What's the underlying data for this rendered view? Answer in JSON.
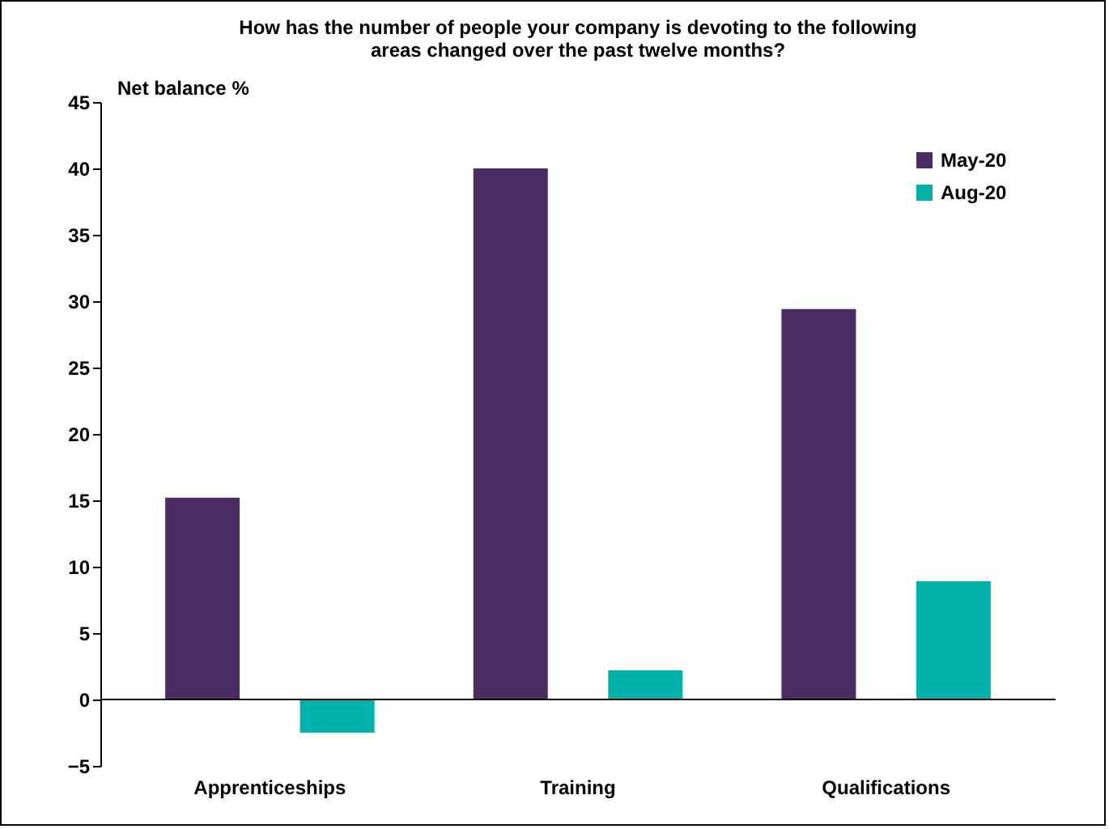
{
  "chart_data": {
    "type": "bar",
    "title": "How has the number of people your company is devoting to the following areas changed over the past twelve months?",
    "ylabel": "Net balance %",
    "categories": [
      "Apprenticeships",
      "Training",
      "Qualifications"
    ],
    "series": [
      {
        "name": "May-20",
        "color": "#4b2d63",
        "values": [
          15.2,
          40,
          29.4
        ]
      },
      {
        "name": "Aug-20",
        "color": "#00b2a9",
        "values": [
          -2.5,
          2.2,
          8.9
        ]
      }
    ],
    "ylim": [
      -5,
      45
    ],
    "yticks": [
      -5,
      0,
      5,
      10,
      15,
      20,
      25,
      30,
      35,
      40,
      45
    ],
    "ref_lines": [
      {
        "axis": "y",
        "value": 0,
        "color": "#000000"
      }
    ],
    "legend": "top right"
  }
}
